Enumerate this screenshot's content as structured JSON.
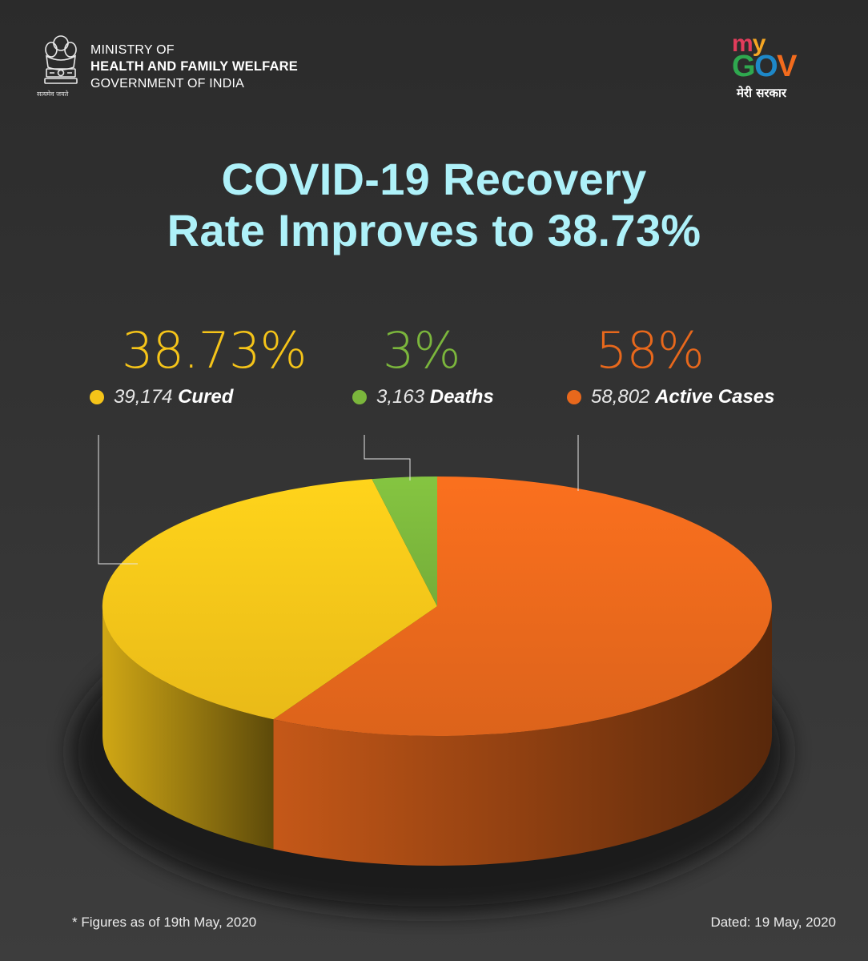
{
  "header": {
    "ministry_line1": "MINISTRY OF",
    "ministry_line2": "HEALTH AND FAMILY WELFARE",
    "ministry_line3": "GOVERNMENT OF INDIA",
    "emblem_motto": "सत्यमेव जयते",
    "logo_my": "my",
    "logo_gov": "GOV",
    "logo_tagline": "मेरी सरकार"
  },
  "title": {
    "line1": "COVID-19 Recovery",
    "line2": "Rate Improves to 38.73%"
  },
  "colors": {
    "title": "#aef1f9",
    "cured": "#f5c419",
    "deaths": "#7bb63c",
    "active": "#e8681c",
    "background": "#2e2e2e"
  },
  "icons": {
    "emblem": "state-emblem-icon",
    "logo": "mygov-logo"
  },
  "chart_data": {
    "type": "pie",
    "style": "3d",
    "slices": [
      {
        "label": "Cured",
        "value": 39174,
        "percent_label": "38.73%",
        "value_label": "39,174",
        "color": "#f5c419"
      },
      {
        "label": "Deaths",
        "value": 3163,
        "percent_label": "3%",
        "value_label": "3,163",
        "color": "#7bb63c"
      },
      {
        "label": "Active Cases",
        "value": 58802,
        "percent_label": "58%",
        "value_label": "58,802",
        "color": "#e8681c"
      }
    ],
    "legend": "top"
  },
  "footer": {
    "note": "* Figures as of 19th May, 2020",
    "dated": "Dated: 19 May, 2020"
  }
}
